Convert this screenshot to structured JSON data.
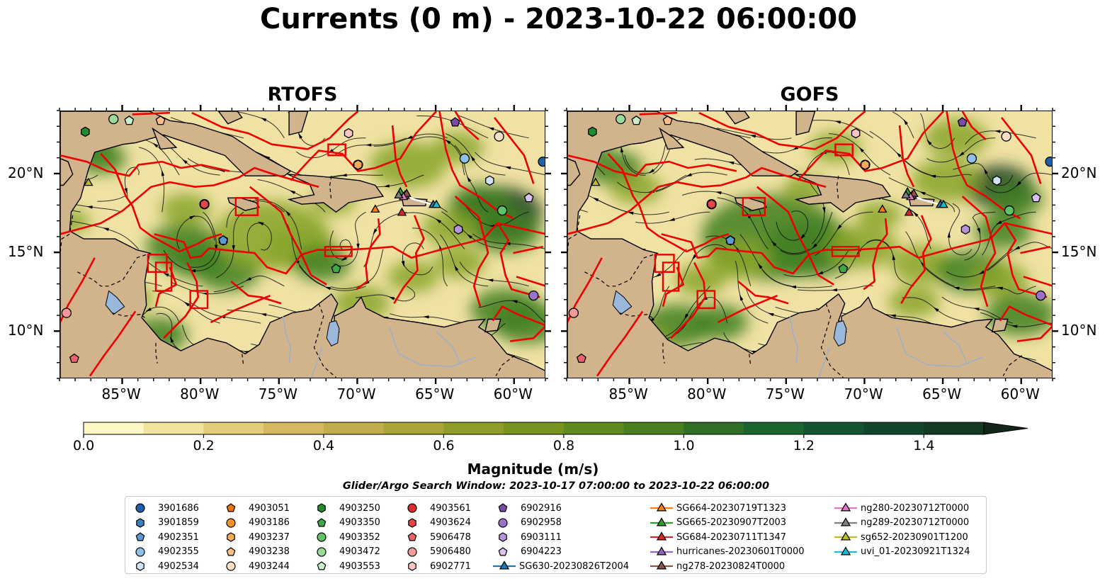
{
  "title": "Currents (0 m) - 2023-10-22 06:00:00",
  "panels": [
    {
      "id": "rtofs",
      "title": "RTOFS"
    },
    {
      "id": "gofs",
      "title": "GOFS"
    }
  ],
  "map_extent": {
    "lon": [
      -89,
      -58
    ],
    "lat": [
      7,
      24
    ]
  },
  "lon_ticks": [
    {
      "value": -85,
      "label": "85°W"
    },
    {
      "value": -80,
      "label": "80°W"
    },
    {
      "value": -75,
      "label": "75°W"
    },
    {
      "value": -70,
      "label": "70°W"
    },
    {
      "value": -65,
      "label": "65°W"
    },
    {
      "value": -60,
      "label": "60°W"
    }
  ],
  "lat_ticks": [
    {
      "value": 20,
      "label": "20°N"
    },
    {
      "value": 15,
      "label": "15°N"
    },
    {
      "value": 10,
      "label": "10°N"
    }
  ],
  "colorbar": {
    "title": "Magnitude (m/s)",
    "range": [
      0,
      1.5
    ],
    "extend": "max",
    "ticks": [
      "0.0",
      "0.2",
      "0.4",
      "0.6",
      "0.8",
      "1.0",
      "1.2",
      "1.4"
    ],
    "colors": [
      "#fdf7c4",
      "#f1e39c",
      "#e3cc7a",
      "#d5b860",
      "#c2ad4c",
      "#a8a637",
      "#8f9d29",
      "#78941f",
      "#5f8a1d",
      "#4a7f1f",
      "#2f6f26",
      "#1a6530",
      "#145432",
      "#12462a",
      "#123a24",
      "#152e1c",
      "#13261a"
    ]
  },
  "search_window": "Glider/Argo Search Window: 2023-10-17 07:00:00 to 2023-10-22 06:00:00",
  "legend": [
    {
      "label": "3901686",
      "marker": "circle",
      "color": "#1f5fa8",
      "lon": -58.2,
      "lat": 20.8
    },
    {
      "label": "3901859",
      "marker": "hexagon",
      "color": "#3c7fc2",
      "lon": -78.6,
      "lat": 15.8
    },
    {
      "label": "4902351",
      "marker": "pentagon",
      "color": "#5a9bd5",
      "lon": -78.6,
      "lat": 15.8
    },
    {
      "label": "4902355",
      "marker": "circle",
      "color": "#8fc0ea",
      "lon": -63.2,
      "lat": 21.0
    },
    {
      "label": "4902534",
      "marker": "hexagon",
      "color": "#cfe4f7",
      "lon": -61.6,
      "lat": 19.6
    },
    {
      "label": "4903051",
      "marker": "pentagon",
      "color": "#e8750e",
      "lon": -70.0,
      "lat": 20.6
    },
    {
      "label": "4903186",
      "marker": "circle",
      "color": "#f3922b",
      "lon": -70.0,
      "lat": 20.6
    },
    {
      "label": "4903237",
      "marker": "hexagon",
      "color": "#f7aa5c",
      "lon": -70.0,
      "lat": 20.6
    },
    {
      "label": "4903238",
      "marker": "pentagon",
      "color": "#f9c08b",
      "lon": -82.6,
      "lat": 23.4
    },
    {
      "label": "4903244",
      "marker": "circle",
      "color": "#fde0c4",
      "lon": -61.0,
      "lat": 22.4
    },
    {
      "label": "4903250",
      "marker": "hexagon",
      "color": "#238b2f",
      "lon": -87.4,
      "lat": 22.7
    },
    {
      "label": "4903350",
      "marker": "pentagon",
      "color": "#3da74a",
      "lon": -71.4,
      "lat": 14.0
    },
    {
      "label": "4903352",
      "marker": "circle",
      "color": "#5fc268",
      "lon": -60.8,
      "lat": 17.7
    },
    {
      "label": "4903472",
      "marker": "circle",
      "color": "#98dc98",
      "lon": -85.6,
      "lat": 23.5
    },
    {
      "label": "4903553",
      "marker": "pentagon",
      "color": "#c8f0c8",
      "lon": -84.6,
      "lat": 23.4
    },
    {
      "label": "4903561",
      "marker": "circle",
      "color": "#d62d2d",
      "lon": -79.8,
      "lat": 18.1
    },
    {
      "label": "4903624",
      "marker": "hexagon",
      "color": "#e24848",
      "lon": -79.8,
      "lat": 18.1
    },
    {
      "label": "5906478",
      "marker": "pentagon",
      "color": "#e8646a",
      "lon": -88.1,
      "lat": 8.3
    },
    {
      "label": "5906480",
      "marker": "circle",
      "color": "#f2999b",
      "lon": -88.6,
      "lat": 11.2
    },
    {
      "label": "6902771",
      "marker": "hexagon",
      "color": "#f7c6c4",
      "lon": -70.6,
      "lat": 22.6
    },
    {
      "label": "6902916",
      "marker": "pentagon",
      "color": "#7a4aa8",
      "lon": -63.8,
      "lat": 23.3
    },
    {
      "label": "6902958",
      "marker": "circle",
      "color": "#9a72c6",
      "lon": -58.8,
      "lat": 12.3
    },
    {
      "label": "6903111",
      "marker": "hexagon",
      "color": "#b594da",
      "lon": -63.6,
      "lat": 16.5
    },
    {
      "label": "6904223",
      "marker": "pentagon",
      "color": "#d8c2f0",
      "lon": -59.1,
      "lat": 18.5
    },
    {
      "label": "SG630-20230826T2004",
      "marker": "triangle-line",
      "color": "#1f77b4",
      "lon": -65.2,
      "lat": 18.1
    },
    {
      "label": "SG664-20230719T1323",
      "marker": "triangle-line",
      "color": "#ff7f0e",
      "lon": -68.9,
      "lat": 17.8
    },
    {
      "label": "SG665-20230907T2003",
      "marker": "triangle-line",
      "color": "#2ca02c",
      "lon": -67.3,
      "lat": 18.9
    },
    {
      "label": "SG684-20230711T1347",
      "marker": "triangle-line",
      "color": "#d62728",
      "lon": -67.2,
      "lat": 17.6
    },
    {
      "label": "hurricanes-20230601T0000",
      "marker": "triangle-line",
      "color": "#9467bd",
      "lon": -67.0,
      "lat": 18.7
    },
    {
      "label": "ng278-20230824T0000",
      "marker": "triangle-line",
      "color": "#8c564b",
      "lon": -66.9,
      "lat": 18.8
    },
    {
      "label": "ng280-20230712T0000",
      "marker": "triangle-line",
      "color": "#e377c2",
      "lon": -67.1,
      "lat": 18.6
    },
    {
      "label": "ng289-20230712T0000",
      "marker": "triangle-line",
      "color": "#7f7f7f",
      "lon": -67.4,
      "lat": 18.7
    },
    {
      "label": "sg652-20230901T1200",
      "marker": "triangle-line",
      "color": "#bcbd22",
      "lon": -87.2,
      "lat": 19.5
    },
    {
      "label": "uvi_01-20230921T1324",
      "marker": "triangle-line",
      "color": "#17becf",
      "lon": -65.0,
      "lat": 18.1
    }
  ]
}
